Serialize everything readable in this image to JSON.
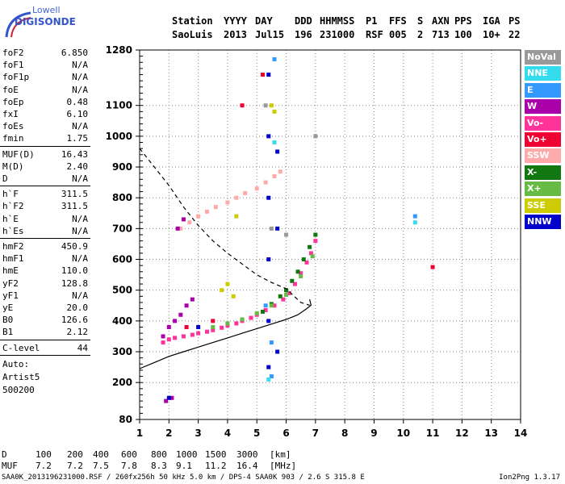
{
  "brand": {
    "line1": "Lowell",
    "line2": "DIGISONDE"
  },
  "header": {
    "labels": [
      "Station",
      "YYYY",
      "DAY",
      "DDD",
      "HHMMSS",
      "P1",
      "FFS",
      "S",
      "AXN",
      "PPS",
      "IGA",
      "PS"
    ],
    "values": [
      "SaoLuis",
      "2013",
      "Jul15",
      "196",
      "231000",
      "RSF",
      "005",
      "2",
      "713",
      "100",
      "10+",
      "22"
    ]
  },
  "params": {
    "group1": [
      {
        "label": "foF2",
        "value": "6.850"
      },
      {
        "label": "foF1",
        "value": "N/A"
      },
      {
        "label": "foF1p",
        "value": "N/A"
      },
      {
        "label": "foE",
        "value": "N/A"
      },
      {
        "label": "foEp",
        "value": "0.48"
      },
      {
        "label": "fxI",
        "value": "6.10"
      },
      {
        "label": "foEs",
        "value": "N/A"
      },
      {
        "label": "fmin",
        "value": "1.75"
      }
    ],
    "group2": [
      {
        "label": "MUF(D)",
        "value": "16.43"
      },
      {
        "label": "M(D)",
        "value": "2.40"
      },
      {
        "label": "D",
        "value": "N/A"
      }
    ],
    "group3": [
      {
        "label": "h`F",
        "value": "311.5"
      },
      {
        "label": "h`F2",
        "value": "311.5"
      },
      {
        "label": "h`E",
        "value": "N/A"
      },
      {
        "label": "h`Es",
        "value": "N/A"
      }
    ],
    "group4": [
      {
        "label": "hmF2",
        "value": "450.9"
      },
      {
        "label": "hmF1",
        "value": "N/A"
      },
      {
        "label": "hmE",
        "value": "110.0"
      },
      {
        "label": "yF2",
        "value": "128.8"
      },
      {
        "label": "yF1",
        "value": "N/A"
      },
      {
        "label": "yE",
        "value": "20.0"
      },
      {
        "label": "B0",
        "value": "126.6"
      },
      {
        "label": "B1",
        "value": "2.12"
      }
    ],
    "clevel": {
      "label": "C-level",
      "value": "44"
    }
  },
  "notes": {
    "auto": "Auto:",
    "artist": "Artist5",
    "version": "500200"
  },
  "legend": [
    {
      "label": "NoVal",
      "color": "#999999"
    },
    {
      "label": "NNE",
      "color": "#33ddee"
    },
    {
      "label": "E",
      "color": "#3399ff"
    },
    {
      "label": "W",
      "color": "#aa00aa"
    },
    {
      "label": "Vo-",
      "color": "#ff3399"
    },
    {
      "label": "Vo+",
      "color": "#ee0033"
    },
    {
      "label": "SSW",
      "color": "#ffaaaa"
    },
    {
      "label": "X-",
      "color": "#117711"
    },
    {
      "label": "X+",
      "color": "#66bb44"
    },
    {
      "label": "SSE",
      "color": "#cccc00"
    },
    {
      "label": "NNW",
      "color": "#0000cc"
    }
  ],
  "footer": {
    "d_row": [
      "D",
      "100",
      "200",
      "400",
      "600",
      "800",
      "1000",
      "1500",
      "3000",
      "[km]"
    ],
    "muf_row": [
      "MUF",
      "7.2",
      "7.2",
      "7.5",
      "7.8",
      "8.3",
      "9.1",
      "11.2",
      "16.4",
      "[MHz]"
    ],
    "info": "SAA0K_2013196231000.RSF / 260fx256h 50 kHz 5.0 km / DPS-4 SAA0K 903 / 2.6 S 315.8 E",
    "app": "Ion2Png 1.3.17"
  },
  "chart_data": {
    "type": "scatter",
    "x_ticks": [
      1,
      2,
      3,
      4,
      5,
      6,
      7,
      8,
      9,
      10,
      11,
      12,
      13,
      14
    ],
    "y_ticks": [
      80,
      200,
      300,
      400,
      500,
      600,
      700,
      800,
      900,
      1000,
      1100,
      1280
    ],
    "y_minor_ticks": [
      80,
      100,
      120,
      140,
      160,
      180,
      200,
      220,
      240,
      260,
      280,
      300,
      320,
      340,
      360,
      380,
      400,
      420,
      440,
      460,
      480,
      500,
      520,
      540,
      560,
      580,
      600,
      620,
      640,
      660,
      680,
      700,
      720,
      740,
      760,
      780,
      800,
      820,
      840,
      860,
      880,
      900,
      920,
      940,
      960,
      980,
      1000,
      1020,
      1040,
      1060,
      1080,
      1100,
      1120,
      1140,
      1160,
      1180,
      1200,
      1220,
      1240,
      1260,
      1280
    ],
    "xlim": [
      1,
      14
    ],
    "ylim": [
      80,
      1280
    ],
    "grid": true,
    "legend_position": "right",
    "profile_curve": [
      [
        1.0,
        245
      ],
      [
        1.5,
        265
      ],
      [
        2.0,
        285
      ],
      [
        2.5,
        300
      ],
      [
        3.0,
        315
      ],
      [
        3.5,
        330
      ],
      [
        4.0,
        345
      ],
      [
        4.5,
        360
      ],
      [
        5.0,
        375
      ],
      [
        5.5,
        390
      ],
      [
        6.0,
        405
      ],
      [
        6.4,
        420
      ],
      [
        6.7,
        440
      ],
      [
        6.85,
        451
      ],
      [
        6.8,
        470
      ]
    ],
    "mufd_curve": [
      [
        1.0,
        960
      ],
      [
        1.5,
        900
      ],
      [
        2.0,
        840
      ],
      [
        2.5,
        770
      ],
      [
        3.0,
        710
      ],
      [
        3.5,
        660
      ],
      [
        4.0,
        620
      ],
      [
        4.5,
        585
      ],
      [
        5.0,
        550
      ],
      [
        5.5,
        525
      ],
      [
        6.0,
        505
      ],
      [
        6.5,
        460
      ],
      [
        6.8,
        451
      ]
    ],
    "traces": [
      {
        "series": "Vo-",
        "points": [
          [
            1.8,
            330
          ],
          [
            2.0,
            340
          ],
          [
            2.2,
            345
          ],
          [
            2.5,
            350
          ],
          [
            2.8,
            355
          ],
          [
            3.0,
            360
          ],
          [
            3.3,
            365
          ],
          [
            3.5,
            370
          ],
          [
            3.8,
            378
          ],
          [
            4.0,
            385
          ],
          [
            4.3,
            392
          ],
          [
            4.5,
            400
          ],
          [
            4.8,
            410
          ],
          [
            5.0,
            420
          ],
          [
            5.3,
            435
          ],
          [
            5.6,
            450
          ],
          [
            5.9,
            470
          ],
          [
            6.1,
            490
          ],
          [
            6.3,
            520
          ],
          [
            6.5,
            555
          ],
          [
            6.7,
            590
          ],
          [
            6.85,
            620
          ],
          [
            7.0,
            660
          ]
        ]
      },
      {
        "series": "X-",
        "points": [
          [
            5.2,
            430
          ],
          [
            5.5,
            455
          ],
          [
            5.8,
            480
          ],
          [
            6.0,
            500
          ],
          [
            6.2,
            530
          ],
          [
            6.4,
            560
          ],
          [
            6.6,
            600
          ],
          [
            6.8,
            640
          ],
          [
            7.0,
            680
          ]
        ]
      },
      {
        "series": "X+",
        "points": [
          [
            3.5,
            380
          ],
          [
            4.0,
            392
          ],
          [
            4.5,
            405
          ],
          [
            5.0,
            425
          ],
          [
            5.5,
            450
          ],
          [
            6.0,
            485
          ],
          [
            6.5,
            545
          ],
          [
            6.9,
            610
          ]
        ]
      },
      {
        "series": "SSW",
        "points": [
          [
            2.4,
            700
          ],
          [
            2.7,
            720
          ],
          [
            3.0,
            740
          ],
          [
            3.3,
            755
          ],
          [
            3.6,
            770
          ],
          [
            4.0,
            785
          ],
          [
            4.3,
            800
          ],
          [
            4.6,
            815
          ],
          [
            5.0,
            830
          ],
          [
            5.3,
            850
          ],
          [
            5.6,
            870
          ],
          [
            5.8,
            885
          ]
        ]
      },
      {
        "series": "W",
        "points": [
          [
            1.8,
            350
          ],
          [
            2.0,
            380
          ],
          [
            2.2,
            400
          ],
          [
            2.4,
            420
          ],
          [
            2.6,
            450
          ],
          [
            2.8,
            470
          ],
          [
            1.9,
            140
          ],
          [
            2.1,
            150
          ],
          [
            2.3,
            700
          ],
          [
            2.5,
            730
          ]
        ]
      },
      {
        "series": "NNW",
        "points": [
          [
            5.4,
            1200
          ],
          [
            5.4,
            1000
          ],
          [
            5.4,
            800
          ],
          [
            5.4,
            600
          ],
          [
            5.4,
            400
          ],
          [
            5.4,
            250
          ],
          [
            5.7,
            950
          ],
          [
            5.7,
            700
          ],
          [
            5.7,
            300
          ],
          [
            2.0,
            150
          ],
          [
            3.0,
            380
          ]
        ]
      },
      {
        "series": "SSE",
        "points": [
          [
            3.8,
            500
          ],
          [
            4.0,
            520
          ],
          [
            4.2,
            480
          ],
          [
            5.6,
            1080
          ],
          [
            4.3,
            740
          ],
          [
            5.5,
            1100
          ]
        ]
      },
      {
        "series": "E",
        "points": [
          [
            5.5,
            220
          ],
          [
            5.5,
            330
          ],
          [
            5.6,
            1250
          ],
          [
            10.4,
            740
          ],
          [
            5.3,
            450
          ]
        ]
      },
      {
        "series": "NNE",
        "points": [
          [
            5.4,
            210
          ],
          [
            5.6,
            980
          ],
          [
            10.4,
            720
          ]
        ]
      },
      {
        "series": "Vo+",
        "points": [
          [
            2.6,
            380
          ],
          [
            3.5,
            400
          ],
          [
            11.0,
            575
          ],
          [
            5.2,
            1200
          ],
          [
            4.5,
            1100
          ]
        ]
      },
      {
        "series": "NoVal",
        "points": [
          [
            5.3,
            1100
          ],
          [
            5.5,
            700
          ],
          [
            6.0,
            680
          ],
          [
            7.0,
            1000
          ]
        ]
      }
    ]
  }
}
